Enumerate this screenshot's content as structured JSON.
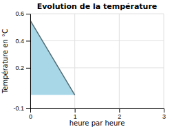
{
  "chart_data": {
    "type": "area",
    "title": "Evolution de la température",
    "xlabel": "heure par heure",
    "ylabel": "Température en °C",
    "x": [
      0,
      1
    ],
    "values": [
      0.55,
      0.0
    ],
    "color": "#a8d8e8",
    "xlim": [
      0,
      3
    ],
    "ylim": [
      -0.1,
      0.6
    ],
    "xticks": [
      0,
      1,
      2,
      3
    ],
    "yticks": [
      -0.1,
      0.2,
      0.4,
      0.6
    ],
    "grid": true
  }
}
